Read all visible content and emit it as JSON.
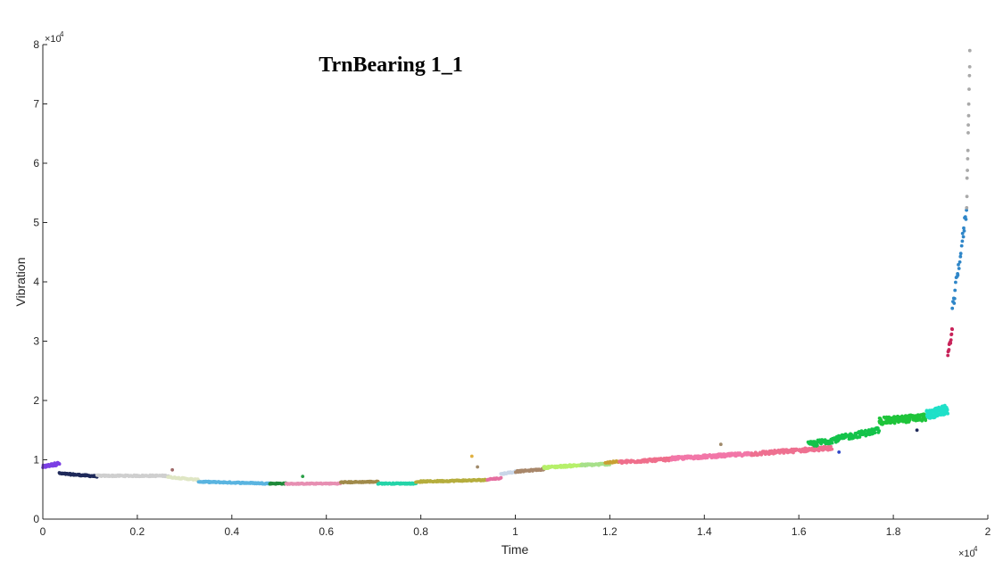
{
  "chart_data": {
    "type": "scatter",
    "title": "TrnBearing 1_1",
    "xlabel": "Time",
    "ylabel": "Vibration",
    "x_multiplier_label": "×10",
    "x_multiplier_exp": "4",
    "y_multiplier_label": "×10",
    "y_multiplier_exp": "4",
    "xlim": [
      0,
      20000
    ],
    "ylim": [
      0,
      80000
    ],
    "x_ticks": [
      0,
      2000,
      4000,
      6000,
      8000,
      10000,
      12000,
      14000,
      16000,
      18000,
      20000
    ],
    "x_tick_labels": [
      "0",
      "0.2",
      "0.4",
      "0.6",
      "0.8",
      "1",
      "1.2",
      "1.4",
      "1.6",
      "1.8",
      "2"
    ],
    "y_ticks": [
      0,
      10000,
      20000,
      30000,
      40000,
      50000,
      60000,
      70000,
      80000
    ],
    "y_tick_labels": [
      "0",
      "1",
      "2",
      "3",
      "4",
      "5",
      "6",
      "7",
      "8"
    ],
    "grid": false,
    "legend": "none",
    "series_note_colors_only": true,
    "segments": [
      {
        "color": "#7b3fe4",
        "x0": 0,
        "x1": 350,
        "y0": 8800,
        "y1": 9400,
        "spread": 500,
        "n": 40
      },
      {
        "color": "#1f2a5a",
        "x0": 350,
        "x1": 1150,
        "y0": 7700,
        "y1": 7200,
        "spread": 250,
        "n": 70
      },
      {
        "color": "#cfcfcf",
        "x0": 1150,
        "x1": 2650,
        "y0": 7300,
        "y1": 7300,
        "spread": 250,
        "n": 120
      },
      {
        "color": "#dfe6c4",
        "x0": 2650,
        "x1": 3300,
        "y0": 7100,
        "y1": 6600,
        "spread": 220,
        "n": 50
      },
      {
        "color": "#5ab4e0",
        "x0": 3300,
        "x1": 4800,
        "y0": 6300,
        "y1": 6000,
        "spread": 220,
        "n": 120
      },
      {
        "color": "#1f8a3a",
        "x0": 4800,
        "x1": 5150,
        "y0": 6000,
        "y1": 6000,
        "spread": 200,
        "n": 25
      },
      {
        "color": "#e78fb2",
        "x0": 5150,
        "x1": 6300,
        "y0": 5950,
        "y1": 6000,
        "spread": 180,
        "n": 90
      },
      {
        "color": "#a08a4a",
        "x0": 6300,
        "x1": 7100,
        "y0": 6200,
        "y1": 6300,
        "spread": 200,
        "n": 60
      },
      {
        "color": "#25d4a8",
        "x0": 7100,
        "x1": 7900,
        "y0": 6000,
        "y1": 6000,
        "spread": 200,
        "n": 60
      },
      {
        "color": "#b5ad3c",
        "x0": 7900,
        "x1": 9400,
        "y0": 6300,
        "y1": 6600,
        "spread": 230,
        "n": 110
      },
      {
        "color": "#e56fa0",
        "x0": 9400,
        "x1": 9700,
        "y0": 6700,
        "y1": 6900,
        "spread": 200,
        "n": 20
      },
      {
        "color": "#c9d6e8",
        "x0": 9700,
        "x1": 10000,
        "y0": 7600,
        "y1": 8000,
        "spread": 250,
        "n": 20
      },
      {
        "color": "#a8876a",
        "x0": 10000,
        "x1": 10600,
        "y0": 8000,
        "y1": 8400,
        "spread": 250,
        "n": 40
      },
      {
        "color": "#b6f06a",
        "x0": 10600,
        "x1": 11400,
        "y0": 8700,
        "y1": 9100,
        "spread": 350,
        "n": 70
      },
      {
        "color": "#a7e08a",
        "x0": 11400,
        "x1": 12000,
        "y0": 9100,
        "y1": 9300,
        "spread": 350,
        "n": 50
      },
      {
        "color": "#c8a033",
        "x0": 11900,
        "x1": 12200,
        "y0": 9500,
        "y1": 9700,
        "spread": 300,
        "n": 20
      },
      {
        "color": "#ef6f8c",
        "x0": 12200,
        "x1": 13300,
        "y0": 9600,
        "y1": 10100,
        "spread": 450,
        "n": 110
      },
      {
        "color": "#f277a8",
        "x0": 13300,
        "x1": 15000,
        "y0": 10200,
        "y1": 11000,
        "spread": 550,
        "n": 160
      },
      {
        "color": "#ee7090",
        "x0": 15000,
        "x1": 16700,
        "y0": 11000,
        "y1": 12000,
        "spread": 650,
        "n": 140
      },
      {
        "color": "#14c34a",
        "x0": 16200,
        "x1": 17700,
        "y0": 12500,
        "y1": 15000,
        "spread": 1000,
        "n": 150
      },
      {
        "color": "#1ec43a",
        "x0": 17700,
        "x1": 18700,
        "y0": 16500,
        "y1": 17200,
        "spread": 1200,
        "n": 120
      },
      {
        "color": "#1fe0c8",
        "x0": 18700,
        "x1": 19150,
        "y0": 17500,
        "y1": 18500,
        "spread": 1600,
        "n": 80
      },
      {
        "color": "#c8245a",
        "x0": 19150,
        "x1": 19250,
        "y0": 27500,
        "y1": 32000,
        "spread": 1200,
        "n": 14
      },
      {
        "color": "#2f86c8",
        "x0": 19250,
        "x1": 19550,
        "y0": 35000,
        "y1": 52000,
        "spread": 2000,
        "n": 26
      },
      {
        "color": "#a9a9a9",
        "x0": 19550,
        "x1": 19620,
        "y0": 53000,
        "y1": 78500,
        "spread": 1500,
        "n": 14
      }
    ],
    "outliers": [
      {
        "x": 9080,
        "y": 10600,
        "color": "#e0b040"
      },
      {
        "x": 2740,
        "y": 8300,
        "color": "#a06a6a"
      },
      {
        "x": 5500,
        "y": 7200,
        "color": "#2aa048"
      },
      {
        "x": 9200,
        "y": 8800,
        "color": "#a08a6a"
      },
      {
        "x": 14350,
        "y": 12600,
        "color": "#a08a6a"
      },
      {
        "x": 16850,
        "y": 11300,
        "color": "#3048c8"
      },
      {
        "x": 18500,
        "y": 15000,
        "color": "#1f2a5a"
      }
    ]
  }
}
